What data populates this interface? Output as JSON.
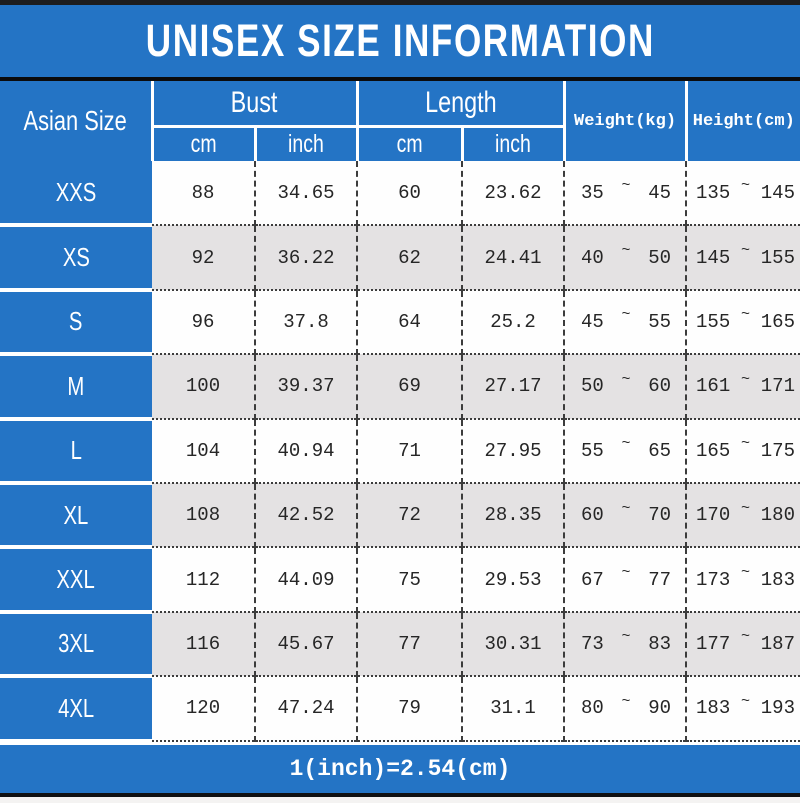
{
  "title": "UNISEX SIZE INFORMATION",
  "footer_note": "1(inch)=2.54(cm)",
  "tilde": "~",
  "columns": {
    "asian_size": "Asian Size",
    "bust": "Bust",
    "length": "Length",
    "cm": "cm",
    "inch": "inch",
    "weight": "Weight(kg)",
    "height": "Height(cm)"
  },
  "colors": {
    "accent_blue": "#2474c5",
    "alt_row_gray": "#e4e2e3",
    "text_dark": "#262626",
    "header_text": "#ffffff",
    "chrome_bar": "#1d1d1f"
  },
  "rows": [
    {
      "size": "XXS",
      "bust_cm": "88",
      "bust_inch": "34.65",
      "length_cm": "60",
      "length_inch": "23.62",
      "weight_min": "35",
      "weight_max": "45",
      "height_min": "135",
      "height_max": "145"
    },
    {
      "size": "XS",
      "bust_cm": "92",
      "bust_inch": "36.22",
      "length_cm": "62",
      "length_inch": "24.41",
      "weight_min": "40",
      "weight_max": "50",
      "height_min": "145",
      "height_max": "155"
    },
    {
      "size": "S",
      "bust_cm": "96",
      "bust_inch": "37.8",
      "length_cm": "64",
      "length_inch": "25.2",
      "weight_min": "45",
      "weight_max": "55",
      "height_min": "155",
      "height_max": "165"
    },
    {
      "size": "M",
      "bust_cm": "100",
      "bust_inch": "39.37",
      "length_cm": "69",
      "length_inch": "27.17",
      "weight_min": "50",
      "weight_max": "60",
      "height_min": "161",
      "height_max": "171"
    },
    {
      "size": "L",
      "bust_cm": "104",
      "bust_inch": "40.94",
      "length_cm": "71",
      "length_inch": "27.95",
      "weight_min": "55",
      "weight_max": "65",
      "height_min": "165",
      "height_max": "175"
    },
    {
      "size": "XL",
      "bust_cm": "108",
      "bust_inch": "42.52",
      "length_cm": "72",
      "length_inch": "28.35",
      "weight_min": "60",
      "weight_max": "70",
      "height_min": "170",
      "height_max": "180"
    },
    {
      "size": "XXL",
      "bust_cm": "112",
      "bust_inch": "44.09",
      "length_cm": "75",
      "length_inch": "29.53",
      "weight_min": "67",
      "weight_max": "77",
      "height_min": "173",
      "height_max": "183"
    },
    {
      "size": "3XL",
      "bust_cm": "116",
      "bust_inch": "45.67",
      "length_cm": "77",
      "length_inch": "30.31",
      "weight_min": "73",
      "weight_max": "83",
      "height_min": "177",
      "height_max": "187"
    },
    {
      "size": "4XL",
      "bust_cm": "120",
      "bust_inch": "47.24",
      "length_cm": "79",
      "length_inch": "31.1",
      "weight_min": "80",
      "weight_max": "90",
      "height_min": "183",
      "height_max": "193"
    }
  ]
}
